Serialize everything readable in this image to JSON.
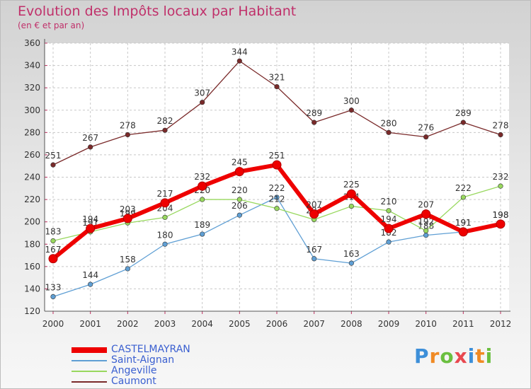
{
  "header": {
    "title": "Evolution des Impôts locaux par Habitant",
    "subtitle": "(en € et par an)"
  },
  "logo": {
    "letters": [
      "P",
      "r",
      "o",
      "x",
      "i",
      "t",
      "i"
    ],
    "colors": [
      "#3d8fd9",
      "#f08a24",
      "#6abf3f",
      "#e8484f",
      "#3d8fd9",
      "#f08a24",
      "#6abf3f"
    ]
  },
  "chart_data": {
    "type": "line",
    "x": [
      "2000",
      "2001",
      "2002",
      "2003",
      "2004",
      "2005",
      "2006",
      "2007",
      "2008",
      "2009",
      "2010",
      "2011",
      "2012"
    ],
    "ylim": [
      120,
      360
    ],
    "yticks": [
      120,
      140,
      160,
      180,
      200,
      220,
      240,
      260,
      280,
      300,
      320,
      340,
      360
    ],
    "grid": true,
    "legend_placement": "bottom-left",
    "series": [
      {
        "name": "Caumont",
        "color": "#7a2a2a",
        "values": [
          251,
          267,
          278,
          282,
          307,
          344,
          321,
          289,
          300,
          280,
          276,
          289,
          278
        ],
        "labels": [
          "251",
          "267",
          "278",
          "282",
          "307",
          "344",
          "321",
          "289",
          "300",
          "280",
          "276",
          "289",
          "278"
        ]
      },
      {
        "name": "Saint-Aignan",
        "color": "#5f9fd4",
        "values": [
          133,
          144,
          158,
          180,
          189,
          206,
          222,
          167,
          163,
          182,
          188,
          191,
          198
        ],
        "labels": [
          "133",
          "144",
          "158",
          "180",
          "189",
          "206",
          "222",
          "167",
          "163",
          "182",
          "188",
          "191",
          "198"
        ]
      },
      {
        "name": "Angeville",
        "color": "#98d85e",
        "values": [
          183,
          191,
          199,
          204,
          220,
          220,
          212,
          202,
          214,
          210,
          192,
          222,
          232
        ],
        "labels": [
          "183",
          "191",
          "199",
          "204",
          "220",
          "220",
          "212",
          "202",
          "214",
          "210",
          "192",
          "222",
          "232"
        ]
      },
      {
        "name": "CASTELMAYRAN",
        "color": "#ee0000",
        "values": [
          167,
          194,
          203,
          217,
          232,
          245,
          251,
          207,
          225,
          194,
          207,
          191,
          198
        ],
        "labels": [
          "167",
          "194",
          "203",
          "217",
          "232",
          "245",
          "251",
          "207",
          "225",
          "194",
          "207",
          "191",
          "198"
        ]
      }
    ],
    "legend_order": [
      "CASTELMAYRAN",
      "Saint-Aignan",
      "Angeville",
      "Caumont"
    ]
  }
}
